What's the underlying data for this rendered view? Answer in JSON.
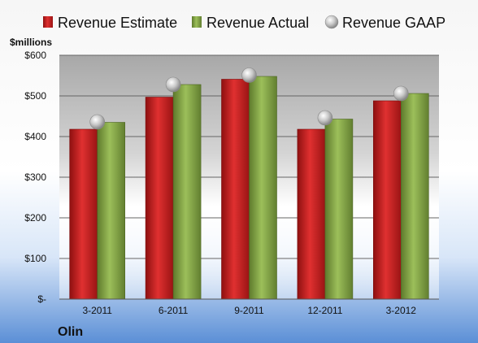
{
  "chart_data": {
    "type": "bar",
    "title": "",
    "company": "Olin",
    "unit_label": "$millions",
    "categories": [
      "3-2011",
      "6-2011",
      "9-2011",
      "12-2011",
      "3-2012"
    ],
    "series": [
      {
        "name": "Revenue Estimate",
        "kind": "bar",
        "color": "#cc2222",
        "values": [
          418,
          497,
          541,
          418,
          488
        ]
      },
      {
        "name": "Revenue Actual",
        "kind": "bar",
        "color": "#8aab4a",
        "values": [
          435,
          528,
          548,
          443,
          506
        ]
      },
      {
        "name": "Revenue GAAP",
        "kind": "marker",
        "color": "#a0a0a0",
        "values": [
          436,
          528,
          551,
          446,
          506
        ]
      }
    ],
    "ylim": [
      0,
      600
    ],
    "yticks": [
      0,
      100,
      200,
      300,
      400,
      500,
      600
    ],
    "ytick_labels": [
      "$-",
      "$100",
      "$200",
      "$300",
      "$400",
      "$500",
      "$600"
    ],
    "grid": true,
    "legend_position": "top"
  }
}
